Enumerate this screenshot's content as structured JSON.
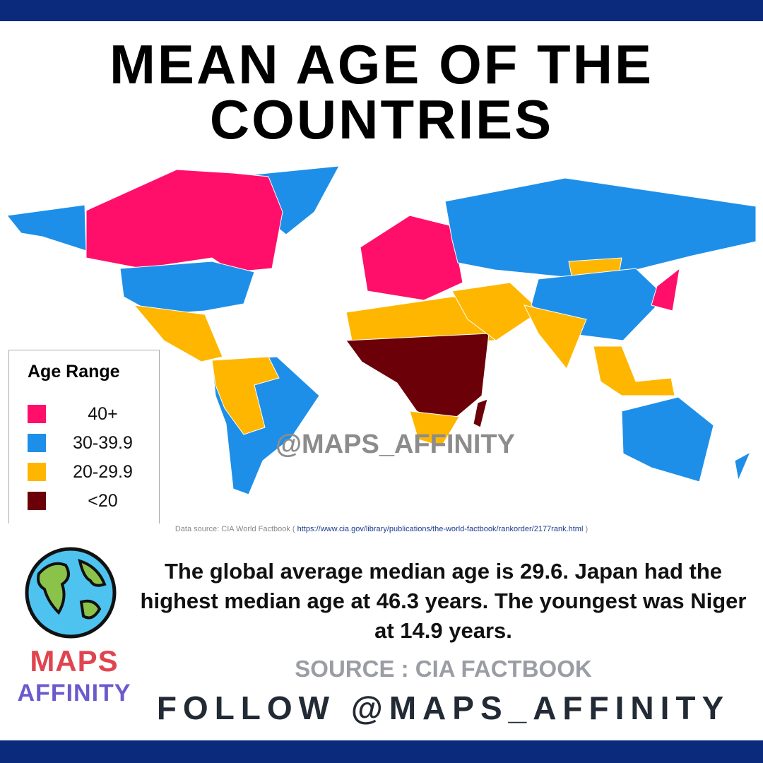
{
  "title_lines": [
    "MEAN AGE OF THE",
    "COUNTRIES"
  ],
  "legend": {
    "title": "Age Range",
    "items": [
      {
        "label": "40+",
        "color": "#ff0f6a"
      },
      {
        "label": "30-39.9",
        "color": "#1e8fe8"
      },
      {
        "label": "20-29.9",
        "color": "#ffb600"
      },
      {
        "label": "<20",
        "color": "#6b0008"
      }
    ]
  },
  "watermark": "@MAPS_AFFINITY",
  "data_source": {
    "prefix": "Data source: CIA World Factbook (",
    "url": "https://www.cia.gov/library/publications/the-world-factbook/rankorder/2177rank.html",
    "suffix": ")"
  },
  "logo": {
    "line1": "MAPS",
    "line2": "AFFINITY"
  },
  "caption": "The global average median age is 29.6. Japan had the highest median age at 46.3 years. The youngest was Niger at 14.9 years.",
  "source": "SOURCE : CIA FACTBOOK",
  "follow": "FOLLOW @MAPS_AFFINITY"
}
